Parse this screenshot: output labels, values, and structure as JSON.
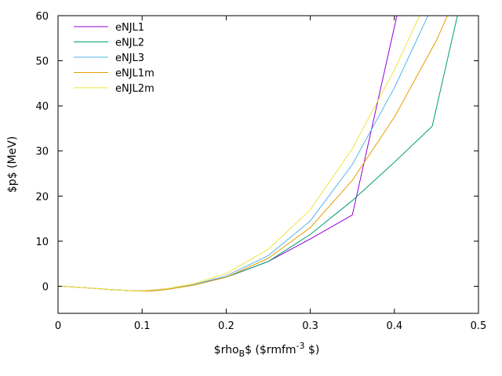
{
  "chart_data": {
    "type": "line",
    "xlabel": "$rho",
    "xlabel_sub": "B",
    "xlabel_mid": "$ ($rmfm",
    "xlabel_sup": "-3",
    "xlabel_end": " $)",
    "ylabel": "$p$ (MeV)",
    "xlim": [
      0,
      0.5
    ],
    "ylim": [
      -6,
      60
    ],
    "xticks": [
      0,
      0.1,
      0.2,
      0.3,
      0.4,
      0.5
    ],
    "xtick_labels": [
      "0",
      "0.1",
      "0.2",
      "0.3",
      "0.4",
      "0.5"
    ],
    "yticks": [
      0,
      10,
      20,
      30,
      40,
      50,
      60
    ],
    "ytick_labels": [
      "0",
      "10",
      "20",
      "30",
      "40",
      "50",
      "60"
    ],
    "legend_position": "top-left",
    "series": [
      {
        "name": "eNJL1",
        "color": "#9400d3",
        "x": [
          0.005,
          0.03,
          0.06,
          0.09,
          0.1,
          0.115,
          0.13,
          0.16,
          0.2,
          0.25,
          0.3,
          0.35,
          0.403
        ],
        "y": [
          0,
          -0.3,
          -0.7,
          -1.0,
          -1.0,
          -0.8,
          -0.5,
          0.3,
          2.0,
          5.5,
          10.5,
          15.8,
          60
        ]
      },
      {
        "name": "eNJL2",
        "color": "#009e73",
        "x": [
          0.005,
          0.03,
          0.06,
          0.09,
          0.1,
          0.115,
          0.13,
          0.16,
          0.2,
          0.25,
          0.3,
          0.35,
          0.4,
          0.445,
          0.475
        ],
        "y": [
          0,
          -0.3,
          -0.7,
          -1.0,
          -1.0,
          -0.9,
          -0.6,
          0.2,
          2.0,
          5.5,
          11.5,
          19.0,
          27.5,
          35.5,
          60
        ]
      },
      {
        "name": "eNJL3",
        "color": "#56b4e9",
        "x": [
          0.005,
          0.03,
          0.06,
          0.09,
          0.1,
          0.115,
          0.13,
          0.16,
          0.2,
          0.25,
          0.3,
          0.35,
          0.4,
          0.44
        ],
        "y": [
          0,
          -0.3,
          -0.7,
          -1.0,
          -1.0,
          -0.9,
          -0.6,
          0.3,
          2.3,
          6.8,
          14.5,
          27.0,
          44.0,
          60
        ]
      },
      {
        "name": "eNJL1m",
        "color": "#e69f00",
        "x": [
          0.005,
          0.03,
          0.06,
          0.09,
          0.1,
          0.115,
          0.13,
          0.16,
          0.2,
          0.25,
          0.3,
          0.35,
          0.4,
          0.45,
          0.463
        ],
        "y": [
          0,
          -0.3,
          -0.7,
          -1.0,
          -1.1,
          -1.0,
          -0.7,
          0.2,
          2.0,
          6.2,
          13.0,
          23.5,
          37.5,
          54.5,
          60
        ]
      },
      {
        "name": "eNJL2m",
        "color": "#f0e442",
        "x": [
          0.005,
          0.03,
          0.06,
          0.09,
          0.1,
          0.115,
          0.13,
          0.16,
          0.2,
          0.25,
          0.3,
          0.35,
          0.4,
          0.43
        ],
        "y": [
          0,
          -0.3,
          -0.7,
          -1.0,
          -1.0,
          -0.8,
          -0.5,
          0.5,
          2.8,
          8.2,
          17.0,
          30.5,
          48.0,
          60
        ]
      }
    ]
  }
}
